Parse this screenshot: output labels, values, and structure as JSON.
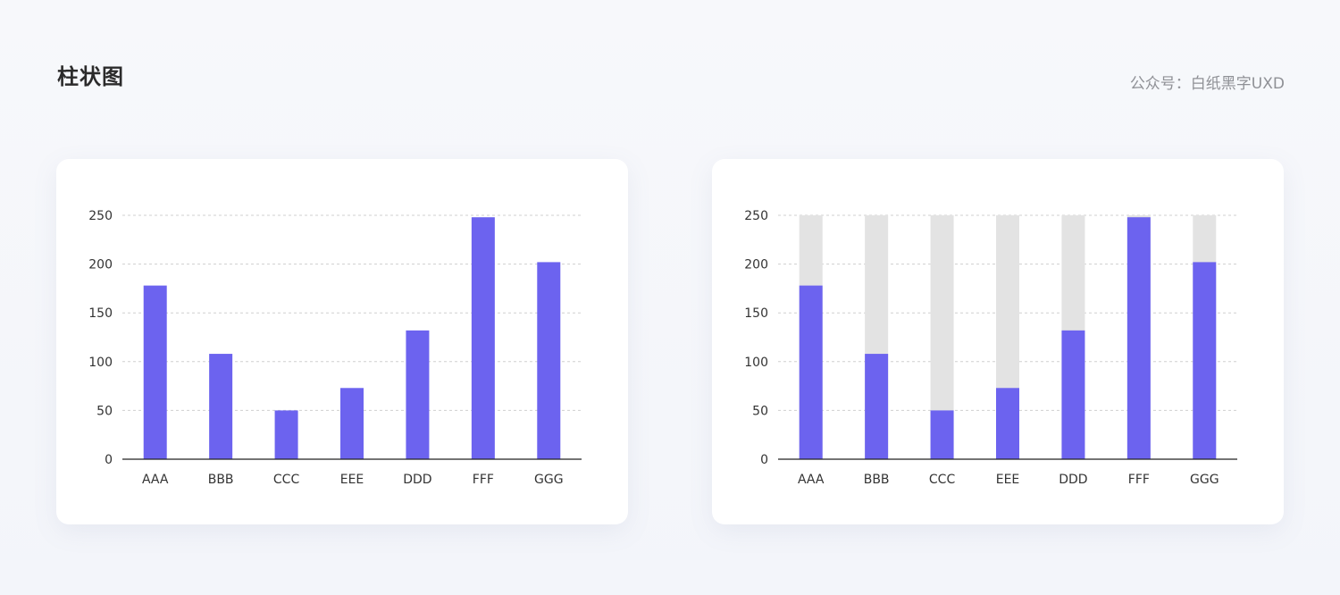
{
  "page": {
    "title": "柱状图",
    "credit": "公众号：白纸黑字UXD"
  },
  "colors": {
    "bar": "#6c63ef",
    "track": "#e3e3e3",
    "grid": "#cfcfcf",
    "axis": "#222222"
  },
  "chart_data": [
    {
      "type": "bar",
      "categories": [
        "AAA",
        "BBB",
        "CCC",
        "EEE",
        "DDD",
        "FFF",
        "GGG"
      ],
      "values": [
        178,
        108,
        50,
        73,
        132,
        248,
        202
      ],
      "ylim": [
        0,
        250
      ],
      "yticks": [
        0,
        50,
        100,
        150,
        200,
        250
      ],
      "grid": true,
      "background_track": false,
      "title": "",
      "xlabel": "",
      "ylabel": ""
    },
    {
      "type": "bar",
      "categories": [
        "AAA",
        "BBB",
        "CCC",
        "EEE",
        "DDD",
        "FFF",
        "GGG"
      ],
      "values": [
        178,
        108,
        50,
        73,
        132,
        248,
        202
      ],
      "ylim": [
        0,
        250
      ],
      "yticks": [
        0,
        50,
        100,
        150,
        200,
        250
      ],
      "grid": true,
      "background_track": true,
      "title": "",
      "xlabel": "",
      "ylabel": ""
    }
  ]
}
